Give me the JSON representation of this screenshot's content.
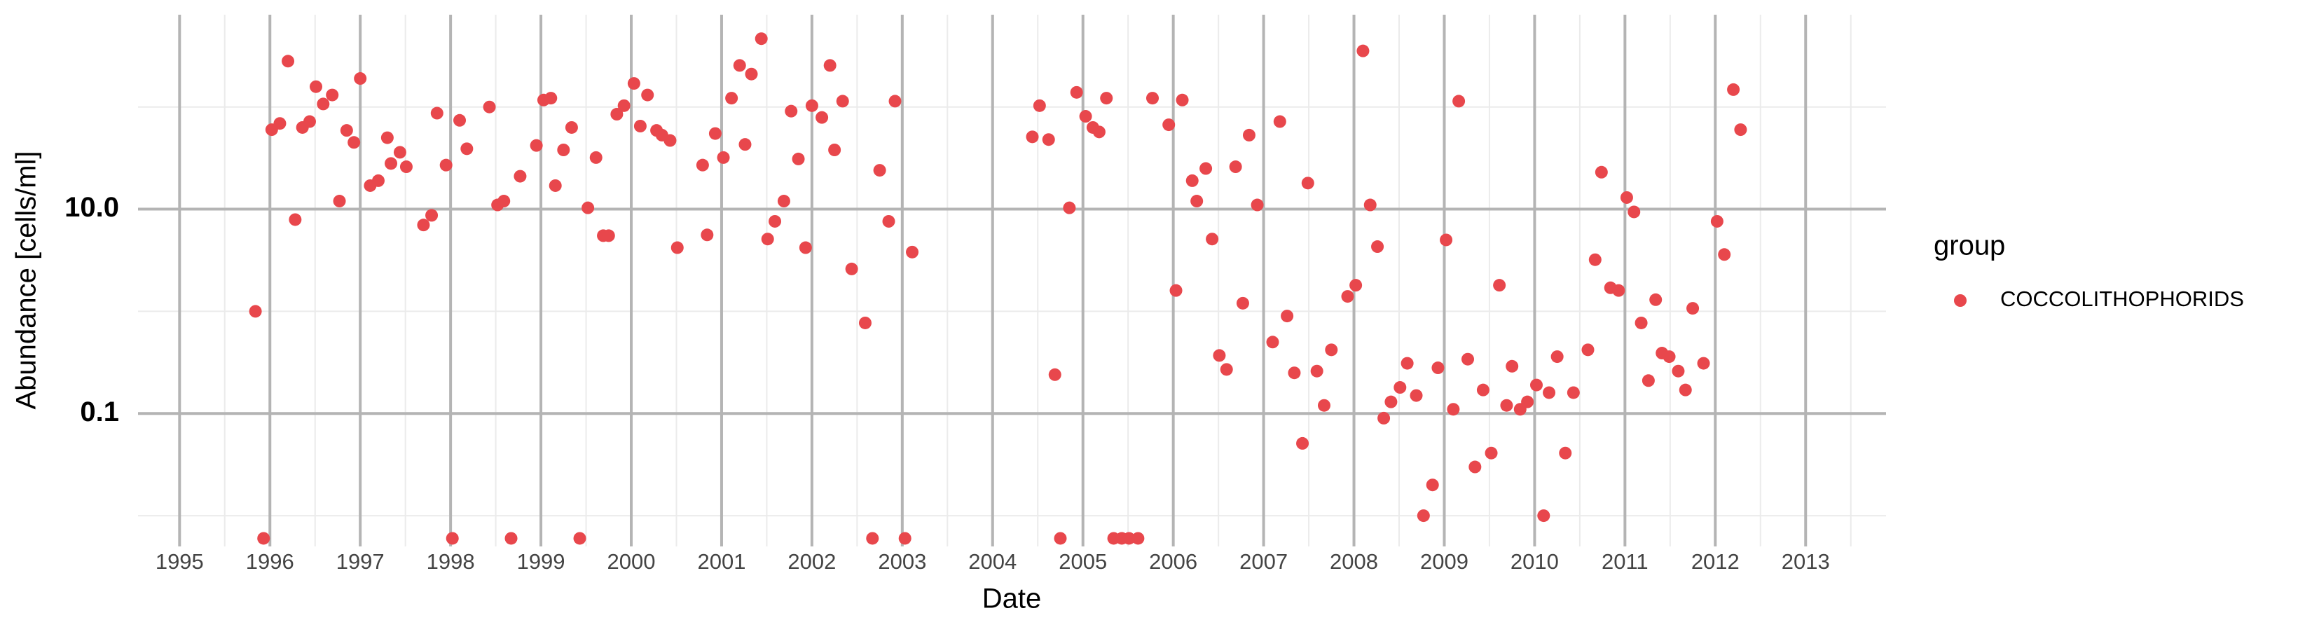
{
  "chart_data": {
    "type": "scatter",
    "x_label": "Date",
    "y_label": "Abundance [cells/ml]",
    "legend_title": "group",
    "legend": "right",
    "log_y": true,
    "grid": true,
    "xlim": [
      1994.54,
      2013.89
    ],
    "xticks": [
      1995,
      1996,
      1997,
      1998,
      1999,
      2000,
      2001,
      2002,
      2003,
      2004,
      2005,
      2006,
      2007,
      2008,
      2009,
      2010,
      2011,
      2012,
      2013
    ],
    "ylim": [
      0.005,
      800
    ],
    "yticks": [
      0.1,
      {
        "value": 10,
        "label": "10.0"
      }
    ],
    "x": [
      1995.84,
      1995.93,
      1996.02,
      1996.11,
      1996.2,
      1996.28,
      1996.36,
      1996.44,
      1996.51,
      1996.59,
      1996.69,
      1996.77,
      1996.85,
      1996.93,
      1997.0,
      1997.11,
      1997.2,
      1997.3,
      1997.34,
      1997.44,
      1997.51,
      1997.7,
      1997.79,
      1997.85,
      1997.95,
      1998.02,
      1998.1,
      1998.18,
      1998.43,
      1998.52,
      1998.59,
      1998.67,
      1998.77,
      1998.95,
      1999.03,
      1999.11,
      1999.16,
      1999.25,
      1999.34,
      1999.43,
      1999.52,
      1999.61,
      1999.69,
      1999.75,
      1999.84,
      1999.92,
      2000.03,
      2000.1,
      2000.18,
      2000.28,
      2000.34,
      2000.43,
      2000.51,
      2000.79,
      2000.84,
      2000.93,
      2001.02,
      2001.11,
      2001.2,
      2001.26,
      2001.33,
      2001.44,
      2001.51,
      2001.59,
      2001.69,
      2001.77,
      2001.85,
      2001.93,
      2002.0,
      2002.11,
      2002.2,
      2002.25,
      2002.34,
      2002.44,
      2002.59,
      2002.67,
      2002.75,
      2002.85,
      2002.92,
      2003.03,
      2003.11,
      2004.44,
      2004.52,
      2004.62,
      2004.69,
      2004.75,
      2004.85,
      2004.93,
      2005.03,
      2005.11,
      2005.18,
      2005.26,
      2005.34,
      2005.43,
      2005.51,
      2005.61,
      2005.77,
      2005.95,
      2006.03,
      2006.1,
      2006.21,
      2006.26,
      2006.36,
      2006.43,
      2006.51,
      2006.59,
      2006.69,
      2006.77,
      2006.84,
      2006.93,
      2007.1,
      2007.18,
      2007.26,
      2007.34,
      2007.43,
      2007.49,
      2007.59,
      2007.67,
      2007.75,
      2007.93,
      2008.02,
      2008.1,
      2008.18,
      2008.26,
      2008.33,
      2008.41,
      2008.51,
      2008.59,
      2008.69,
      2008.77,
      2008.87,
      2008.93,
      2009.02,
      2009.1,
      2009.16,
      2009.26,
      2009.34,
      2009.43,
      2009.52,
      2009.61,
      2009.69,
      2009.75,
      2009.84,
      2009.92,
      2010.02,
      2010.1,
      2010.16,
      2010.25,
      2010.34,
      2010.43,
      2010.59,
      2010.67,
      2010.74,
      2010.84,
      2010.93,
      2011.02,
      2011.1,
      2011.18,
      2011.26,
      2011.34,
      2011.41,
      2011.49,
      2011.59,
      2011.67,
      2011.75,
      2011.87,
      2012.02,
      2012.1,
      2012.2,
      2012.28
    ],
    "series": [
      {
        "name": "COCCOLITHOPHORIDS",
        "color": "#e8474c",
        "values": [
          1.0,
          0.006,
          60,
          69,
          281,
          7.9,
          63,
          72,
          158,
          107,
          131,
          12,
          59,
          45,
          190,
          17,
          19,
          50,
          28,
          36,
          26,
          7.0,
          8.7,
          87,
          27,
          0.006,
          74,
          39,
          100,
          11,
          12,
          0.006,
          21,
          42,
          117,
          122,
          17,
          38,
          63,
          0.006,
          10.3,
          32,
          5.5,
          5.5,
          85,
          103,
          170,
          65,
          131,
          59,
          53,
          47,
          4.2,
          27,
          5.6,
          55,
          32,
          122,
          255,
          43,
          210,
          466,
          5.1,
          7.6,
          12,
          91,
          31,
          4.2,
          103,
          79,
          255,
          38,
          114,
          2.6,
          0.77,
          0.006,
          24,
          7.6,
          114,
          0.006,
          3.8,
          51,
          103,
          48,
          0.24,
          0.006,
          10.3,
          139,
          81,
          63,
          57,
          122,
          0.006,
          0.006,
          0.006,
          0.006,
          122,
          67,
          1.6,
          117,
          19,
          12,
          25,
          5.1,
          0.37,
          0.27,
          26,
          1.2,
          53,
          11,
          0.5,
          72,
          0.9,
          0.25,
          0.051,
          18,
          0.26,
          0.12,
          0.42,
          1.4,
          1.8,
          354,
          11,
          4.3,
          0.09,
          0.13,
          0.18,
          0.31,
          0.15,
          0.01,
          0.02,
          0.28,
          5.0,
          0.11,
          114,
          0.34,
          0.03,
          0.17,
          0.041,
          1.8,
          0.12,
          0.29,
          0.11,
          0.13,
          0.19,
          0.01,
          0.16,
          0.36,
          0.041,
          0.16,
          0.42,
          3.2,
          23,
          1.7,
          1.6,
          13,
          9.4,
          0.77,
          0.21,
          1.3,
          0.39,
          0.36,
          0.26,
          0.17,
          1.07,
          0.31,
          7.6,
          3.6,
          148,
          60
        ]
      }
    ]
  }
}
